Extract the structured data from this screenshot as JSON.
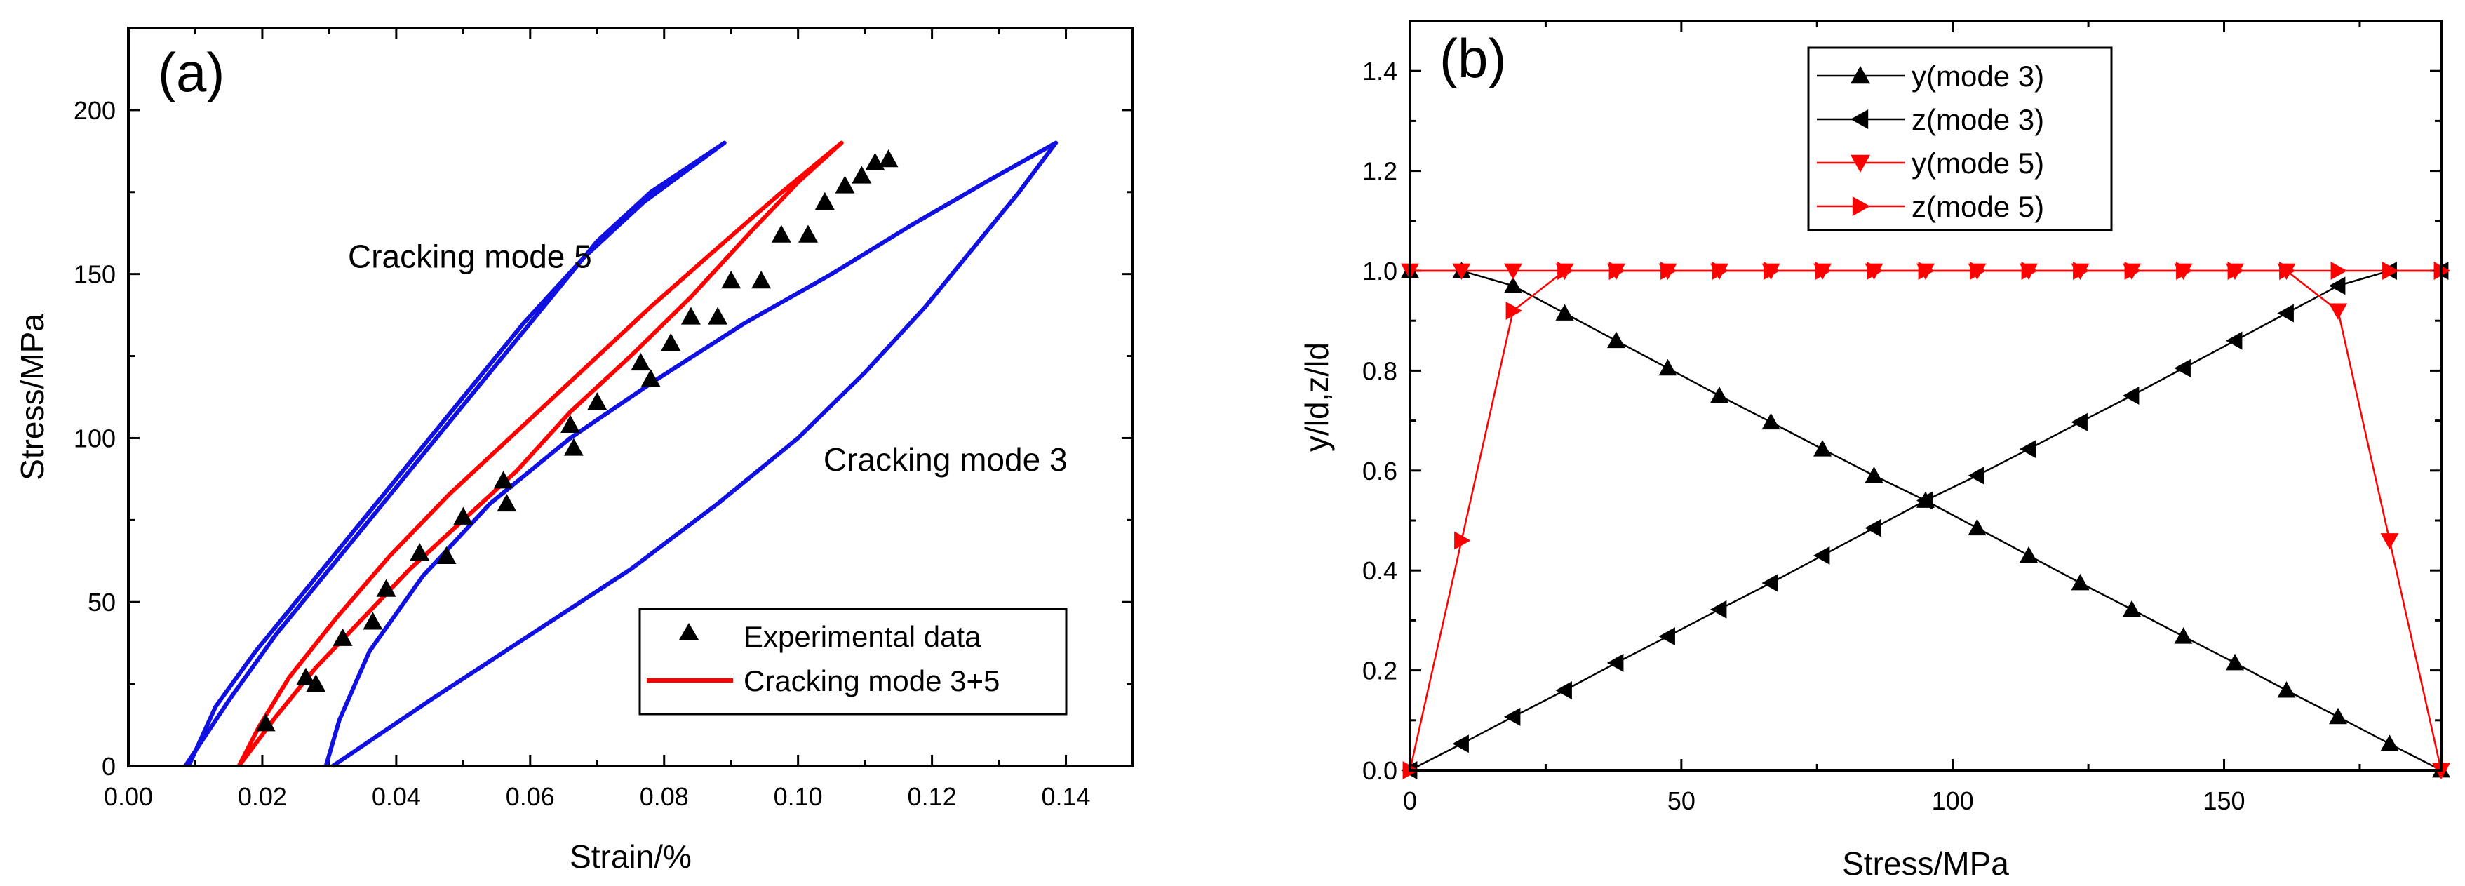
{
  "chart_data": [
    {
      "panel": "(a)",
      "type": "line",
      "xlabel": "Strain/%",
      "ylabel": "Stress/MPa",
      "xlim": [
        0.0,
        0.15
      ],
      "ylim": [
        0,
        225
      ],
      "xticks": [
        0.0,
        0.02,
        0.04,
        0.06,
        0.08,
        0.1,
        0.12,
        0.14
      ],
      "xtick_labels": [
        "0.00",
        "0.02",
        "0.04",
        "0.06",
        "0.08",
        "0.10",
        "0.12",
        "0.14"
      ],
      "yticks": [
        0,
        50,
        100,
        150,
        200
      ],
      "ytick_labels": [
        "0",
        "50",
        "100",
        "150",
        "200"
      ],
      "legend_position": "bottom-right",
      "annotations": [
        {
          "text": "Cracking mode 5",
          "x": 0.051,
          "y": 152
        },
        {
          "text": "Cracking mode 3",
          "x": 0.122,
          "y": 90
        }
      ],
      "series": [
        {
          "name": "Cracking mode 5",
          "color": "#1010e0",
          "kind": "loop",
          "loading": [
            [
              0.0085,
              0
            ],
            [
              0.015,
              20
            ],
            [
              0.022,
              40
            ],
            [
              0.03,
              60
            ],
            [
              0.038,
              80
            ],
            [
              0.046,
              100
            ],
            [
              0.054,
              120
            ],
            [
              0.062,
              140
            ],
            [
              0.07,
              160
            ],
            [
              0.078,
              175
            ],
            [
              0.089,
              190
            ]
          ],
          "unloading": [
            [
              0.089,
              190
            ],
            [
              0.077,
              172
            ],
            [
              0.068,
              155
            ],
            [
              0.059,
              135
            ],
            [
              0.051,
              115
            ],
            [
              0.043,
              95
            ],
            [
              0.035,
              75
            ],
            [
              0.027,
              55
            ],
            [
              0.019,
              35
            ],
            [
              0.013,
              18
            ],
            [
              0.009,
              0
            ]
          ]
        },
        {
          "name": "Cracking mode 3+5",
          "color": "#ff0000",
          "kind": "loop",
          "in_legend": true,
          "loading": [
            [
              0.0165,
              0
            ],
            [
              0.022,
              15
            ],
            [
              0.028,
              30
            ],
            [
              0.035,
              45
            ],
            [
              0.042,
              60
            ],
            [
              0.05,
              75
            ],
            [
              0.058,
              90
            ],
            [
              0.066,
              108
            ],
            [
              0.075,
              125
            ],
            [
              0.084,
              143
            ],
            [
              0.093,
              163
            ],
            [
              0.1,
              178
            ],
            [
              0.1065,
              190
            ]
          ],
          "unloading": [
            [
              0.1065,
              190
            ],
            [
              0.097,
              174
            ],
            [
              0.088,
              158
            ],
            [
              0.078,
              140
            ],
            [
              0.068,
              121
            ],
            [
              0.058,
              102
            ],
            [
              0.048,
              83
            ],
            [
              0.039,
              64
            ],
            [
              0.031,
              45
            ],
            [
              0.024,
              27
            ],
            [
              0.0195,
              12
            ],
            [
              0.0165,
              0
            ]
          ]
        },
        {
          "name": "Cracking mode 3",
          "color": "#1010e0",
          "kind": "loop",
          "loading": [
            [
              0.0305,
              0
            ],
            [
              0.045,
              20
            ],
            [
              0.06,
              40
            ],
            [
              0.075,
              60
            ],
            [
              0.088,
              80
            ],
            [
              0.1,
              100
            ],
            [
              0.11,
              120
            ],
            [
              0.119,
              140
            ],
            [
              0.127,
              160
            ],
            [
              0.133,
              175
            ],
            [
              0.1385,
              190
            ]
          ],
          "unloading": [
            [
              0.1385,
              190
            ],
            [
              0.128,
              178
            ],
            [
              0.117,
              165
            ],
            [
              0.105,
              150
            ],
            [
              0.092,
              135
            ],
            [
              0.079,
              118
            ],
            [
              0.066,
              100
            ],
            [
              0.054,
              80
            ],
            [
              0.044,
              58
            ],
            [
              0.036,
              35
            ],
            [
              0.0315,
              14
            ],
            [
              0.0295,
              0
            ]
          ]
        },
        {
          "name": "Experimental data",
          "color": "#000000",
          "kind": "points",
          "marker": "triangle-up",
          "in_legend": true,
          "points": [
            [
              0.0205,
              13
            ],
            [
              0.0265,
              27
            ],
            [
              0.028,
              25
            ],
            [
              0.032,
              39
            ],
            [
              0.0365,
              44
            ],
            [
              0.0385,
              54
            ],
            [
              0.0435,
              65
            ],
            [
              0.0475,
              64
            ],
            [
              0.05,
              76
            ],
            [
              0.056,
              87
            ],
            [
              0.0565,
              80
            ],
            [
              0.066,
              104
            ],
            [
              0.0665,
              97
            ],
            [
              0.07,
              111
            ],
            [
              0.0765,
              123
            ],
            [
              0.078,
              118
            ],
            [
              0.081,
              129
            ],
            [
              0.084,
              137
            ],
            [
              0.088,
              137
            ],
            [
              0.09,
              148
            ],
            [
              0.0945,
              148
            ],
            [
              0.0975,
              162
            ],
            [
              0.1015,
              162
            ],
            [
              0.104,
              172
            ],
            [
              0.107,
              177
            ],
            [
              0.1095,
              180
            ],
            [
              0.1115,
              184
            ],
            [
              0.1135,
              185
            ]
          ]
        }
      ]
    },
    {
      "panel": "(b)",
      "type": "line",
      "xlabel": "Stress/MPa",
      "ylabel": "y/ld,z/ld",
      "xlim": [
        0,
        190
      ],
      "ylim": [
        0,
        1.5
      ],
      "xticks": [
        0,
        50,
        100,
        150
      ],
      "xtick_labels": [
        "0",
        "50",
        "100",
        "150"
      ],
      "yticks": [
        0.0,
        0.2,
        0.4,
        0.6,
        0.8,
        1.0,
        1.2,
        1.4
      ],
      "ytick_labels": [
        "0.0",
        "0.2",
        "0.4",
        "0.6",
        "0.8",
        "1.0",
        "1.2",
        "1.4"
      ],
      "legend_position": "top-center",
      "x": [
        0,
        9.5,
        19,
        28.5,
        38,
        47.5,
        57,
        66.5,
        76,
        85.5,
        95,
        104.5,
        114,
        123.5,
        133,
        142.5,
        152,
        161.5,
        171,
        180.5,
        190
      ],
      "series": [
        {
          "name": "y(mode 3)",
          "color": "#000000",
          "marker": "triangle-up",
          "values": [
            1.0,
            1.0,
            0.97,
            0.915,
            0.86,
            0.805,
            0.75,
            0.697,
            0.643,
            0.59,
            0.54,
            0.485,
            0.43,
            0.375,
            0.322,
            0.268,
            0.215,
            0.16,
            0.107,
            0.053,
            0.0
          ]
        },
        {
          "name": "z(mode 3)",
          "color": "#000000",
          "marker": "triangle-left",
          "values": [
            0.0,
            0.053,
            0.107,
            0.16,
            0.215,
            0.268,
            0.322,
            0.375,
            0.43,
            0.485,
            0.54,
            0.59,
            0.643,
            0.697,
            0.75,
            0.805,
            0.86,
            0.915,
            0.97,
            1.0,
            1.0
          ]
        },
        {
          "name": "y(mode 5)",
          "color": "#ff0000",
          "marker": "triangle-down",
          "values": [
            1.0,
            1.0,
            1.0,
            1.0,
            1.0,
            1.0,
            1.0,
            1.0,
            1.0,
            1.0,
            1.0,
            1.0,
            1.0,
            1.0,
            1.0,
            1.0,
            1.0,
            1.0,
            0.92,
            0.46,
            0.0
          ]
        },
        {
          "name": "z(mode 5)",
          "color": "#ff0000",
          "marker": "triangle-right",
          "values": [
            0.0,
            0.46,
            0.92,
            1.0,
            1.0,
            1.0,
            1.0,
            1.0,
            1.0,
            1.0,
            1.0,
            1.0,
            1.0,
            1.0,
            1.0,
            1.0,
            1.0,
            1.0,
            1.0,
            1.0,
            1.0
          ]
        }
      ]
    }
  ]
}
